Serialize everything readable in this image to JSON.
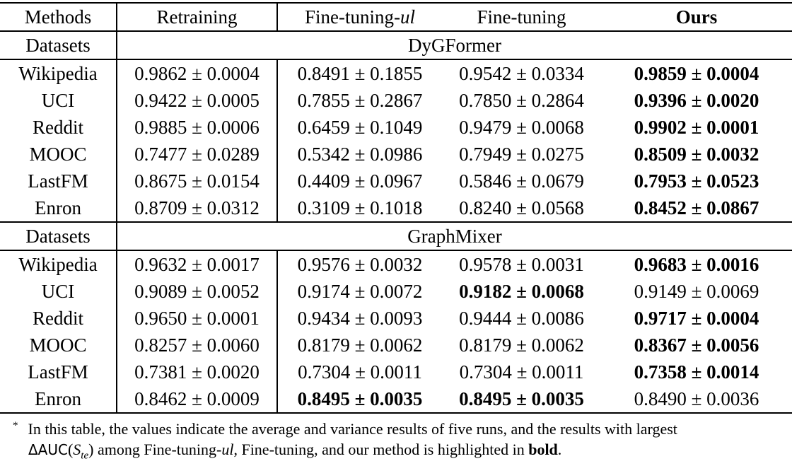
{
  "table": {
    "header": {
      "methods_label": "Methods",
      "col_retraining": "Retraining",
      "col_ft_ul_prefix": "Fine-tuning-",
      "col_ft_ul_italic": "ul",
      "col_finetuning": "Fine-tuning",
      "col_ours": "Ours"
    },
    "sections": [
      {
        "row_label": "Datasets",
        "model": "DyGFormer",
        "rows": [
          {
            "dataset": "Wikipedia",
            "cells": [
              {
                "text": "0.9862 ± 0.0004",
                "bold": false
              },
              {
                "text": "0.8491 ± 0.1855",
                "bold": false
              },
              {
                "text": "0.9542 ± 0.0334",
                "bold": false
              },
              {
                "text": "0.9859 ± 0.0004",
                "bold": true
              }
            ]
          },
          {
            "dataset": "UCI",
            "cells": [
              {
                "text": "0.9422 ± 0.0005",
                "bold": false
              },
              {
                "text": "0.7855 ± 0.2867",
                "bold": false
              },
              {
                "text": "0.7850 ± 0.2864",
                "bold": false
              },
              {
                "text": "0.9396 ± 0.0020",
                "bold": true
              }
            ]
          },
          {
            "dataset": "Reddit",
            "cells": [
              {
                "text": "0.9885 ± 0.0006",
                "bold": false
              },
              {
                "text": "0.6459 ± 0.1049",
                "bold": false
              },
              {
                "text": "0.9479 ± 0.0068",
                "bold": false
              },
              {
                "text": "0.9902 ± 0.0001",
                "bold": true
              }
            ]
          },
          {
            "dataset": "MOOC",
            "cells": [
              {
                "text": "0.7477 ± 0.0289",
                "bold": false
              },
              {
                "text": "0.5342 ± 0.0986",
                "bold": false
              },
              {
                "text": "0.7949 ± 0.0275",
                "bold": false
              },
              {
                "text": "0.8509 ± 0.0032",
                "bold": true
              }
            ]
          },
          {
            "dataset": "LastFM",
            "cells": [
              {
                "text": "0.8675 ± 0.0154",
                "bold": false
              },
              {
                "text": "0.4409 ± 0.0967",
                "bold": false
              },
              {
                "text": "0.5846 ± 0.0679",
                "bold": false
              },
              {
                "text": "0.7953 ± 0.0523",
                "bold": true
              }
            ]
          },
          {
            "dataset": "Enron",
            "cells": [
              {
                "text": "0.8709 ± 0.0312",
                "bold": false
              },
              {
                "text": "0.3109 ± 0.1018",
                "bold": false
              },
              {
                "text": "0.8240 ± 0.0568",
                "bold": false
              },
              {
                "text": "0.8452 ± 0.0867",
                "bold": true
              }
            ]
          }
        ]
      },
      {
        "row_label": "Datasets",
        "model": "GraphMixer",
        "rows": [
          {
            "dataset": "Wikipedia",
            "cells": [
              {
                "text": "0.9632 ± 0.0017",
                "bold": false
              },
              {
                "text": "0.9576 ± 0.0032",
                "bold": false
              },
              {
                "text": "0.9578 ± 0.0031",
                "bold": false
              },
              {
                "text": "0.9683 ± 0.0016",
                "bold": true
              }
            ]
          },
          {
            "dataset": "UCI",
            "cells": [
              {
                "text": "0.9089 ± 0.0052",
                "bold": false
              },
              {
                "text": "0.9174 ± 0.0072",
                "bold": false
              },
              {
                "text": "0.9182 ± 0.0068",
                "bold": true
              },
              {
                "text": "0.9149 ± 0.0069",
                "bold": false
              }
            ]
          },
          {
            "dataset": "Reddit",
            "cells": [
              {
                "text": "0.9650 ± 0.0001",
                "bold": false
              },
              {
                "text": "0.9434 ± 0.0093",
                "bold": false
              },
              {
                "text": "0.9444 ± 0.0086",
                "bold": false
              },
              {
                "text": "0.9717 ± 0.0004",
                "bold": true
              }
            ]
          },
          {
            "dataset": "MOOC",
            "cells": [
              {
                "text": "0.8257 ± 0.0060",
                "bold": false
              },
              {
                "text": "0.8179 ± 0.0062",
                "bold": false
              },
              {
                "text": "0.8179 ± 0.0062",
                "bold": false
              },
              {
                "text": "0.8367 ± 0.0056",
                "bold": true
              }
            ]
          },
          {
            "dataset": "LastFM",
            "cells": [
              {
                "text": "0.7381 ± 0.0020",
                "bold": false
              },
              {
                "text": "0.7304 ± 0.0011",
                "bold": false
              },
              {
                "text": "0.7304 ± 0.0011",
                "bold": false
              },
              {
                "text": "0.7358 ± 0.0014",
                "bold": true
              }
            ]
          },
          {
            "dataset": "Enron",
            "cells": [
              {
                "text": "0.8462 ± 0.0009",
                "bold": false
              },
              {
                "text": "0.8495 ± 0.0035",
                "bold": true
              },
              {
                "text": "0.8495 ± 0.0035",
                "bold": true
              },
              {
                "text": "0.8490 ± 0.0036",
                "bold": false
              }
            ]
          }
        ]
      }
    ]
  },
  "footnote": {
    "marker": "*",
    "line1": "In this table, the values indicate the average and variance results of five runs, and the results with largest",
    "math_sf": "ΔAUC",
    "math_open": "(",
    "math_var": "S",
    "math_subscript": "te",
    "math_close": ")",
    "line2_pre": " among Fine-tuning-",
    "line2_italic": "ul",
    "line2_mid": ", Fine-tuning, and our method is highlighted in ",
    "line2_bold": "bold",
    "line2_end": "."
  }
}
